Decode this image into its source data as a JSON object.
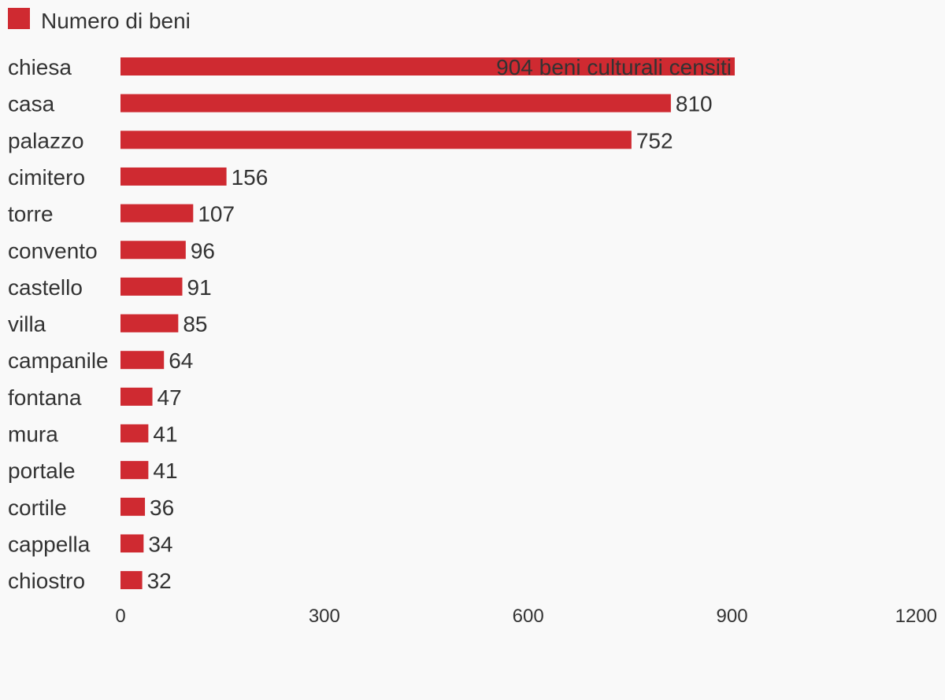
{
  "chart_data": {
    "type": "bar",
    "orientation": "horizontal",
    "legend": {
      "label": "Numero di beni",
      "position": "top-left"
    },
    "bar_color": "#cf2a31",
    "text_color": "#333333",
    "background_color": "#f9f9f9",
    "grid": false,
    "xlim": [
      0,
      1200
    ],
    "xticks": [
      "0",
      "300",
      "600",
      "900",
      "1200"
    ],
    "categories": [
      "chiesa",
      "casa",
      "palazzo",
      "cimitero",
      "torre",
      "convento",
      "castello",
      "villa",
      "campanile",
      "fontana",
      "mura",
      "portale",
      "cortile",
      "cappella",
      "chiostro"
    ],
    "values": [
      904,
      810,
      752,
      156,
      107,
      96,
      91,
      85,
      64,
      47,
      41,
      41,
      36,
      34,
      32
    ],
    "data_labels": [
      "904 beni culturali censiti",
      "810",
      "752",
      "156",
      "107",
      "96",
      "91",
      "85",
      "64",
      "47",
      "41",
      "41",
      "36",
      "34",
      "32"
    ],
    "series": [
      {
        "name": "Numero di beni",
        "values": [
          904,
          810,
          752,
          156,
          107,
          96,
          91,
          85,
          64,
          47,
          41,
          41,
          36,
          34,
          32
        ]
      }
    ]
  }
}
